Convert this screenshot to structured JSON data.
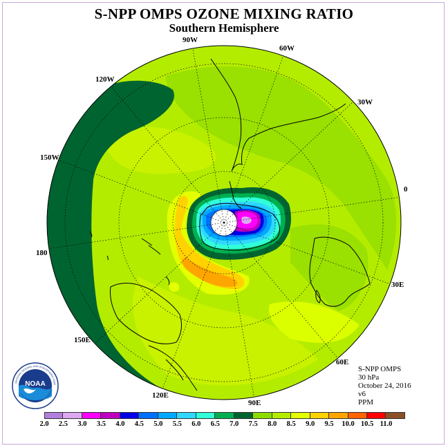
{
  "header": {
    "title": "S-NPP OMPS OZONE MIXING RATIO",
    "subtitle": "Southern Hemisphere"
  },
  "longitude_labels": [
    "90W",
    "60W",
    "30W",
    "0",
    "30E",
    "60E",
    "90E",
    "120E",
    "150E",
    "180",
    "150W",
    "120W"
  ],
  "info": {
    "instrument": "S-NPP OMPS",
    "level": "30 hPa",
    "date": "October 24, 2016",
    "version": "v6",
    "units": "PPM"
  },
  "logo": {
    "text": "NOAA",
    "ring_text": "NATIONAL OCEANIC AND ATMOSPHERIC ADMINISTRATION",
    "bottom_text": "U.S. DEPARTMENT OF COMMERCE"
  },
  "colorbar": {
    "labels": [
      "2.0",
      "2.5",
      "3.0",
      "3.5",
      "4.0",
      "4.5",
      "5.0",
      "5.5",
      "6.0",
      "6.5",
      "7.0",
      "7.5",
      "8.0",
      "8.5",
      "9.0",
      "9.5",
      "10.0",
      "10.5",
      "11.0"
    ],
    "colors": [
      "#b27fdc",
      "#dca8f0",
      "#ff00ff",
      "#c000c0",
      "#0000e8",
      "#0070ff",
      "#00a8ff",
      "#30d8ff",
      "#30ffd8",
      "#00b050",
      "#006430",
      "#8cdc00",
      "#b4ec00",
      "#e4ff00",
      "#ffd200",
      "#ffa500",
      "#ff6400",
      "#ff0000",
      "#8c5028"
    ]
  }
}
